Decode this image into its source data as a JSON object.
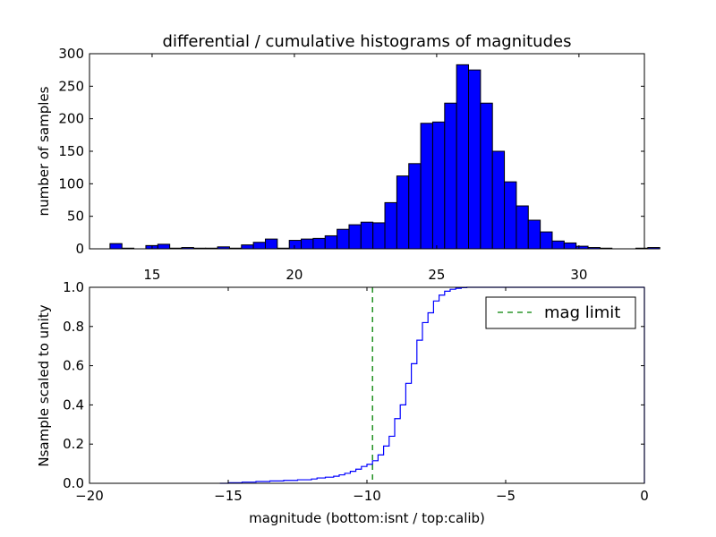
{
  "chart_data": [
    {
      "type": "bar",
      "title": "differential / cumulative histograms of magnitudes",
      "xlabel": "",
      "ylabel": "number of samples",
      "xlim": [
        12.8,
        32.3
      ],
      "ylim": [
        0,
        300
      ],
      "xticks": [
        15,
        20,
        25,
        30
      ],
      "yticks": [
        0,
        50,
        100,
        150,
        200,
        250,
        300
      ],
      "bin_width": 0.42,
      "bin_start": 13.1,
      "bar_color": "#0000ff",
      "values": [
        0,
        8,
        1,
        0,
        5,
        7,
        1,
        2,
        1,
        1,
        3,
        1,
        6,
        10,
        15,
        1,
        13,
        15,
        16,
        20,
        30,
        37,
        41,
        40,
        71,
        112,
        131,
        193,
        195,
        224,
        283,
        275,
        224,
        150,
        103,
        66,
        44,
        26,
        12,
        9,
        4,
        2,
        1,
        0,
        0,
        1,
        2
      ]
    },
    {
      "type": "line",
      "step": true,
      "title": "",
      "xlabel": "magnitude (bottom:isnt / top:calib)",
      "ylabel": "Nsample scaled to unity",
      "xlim": [
        -20,
        0
      ],
      "ylim": [
        0.0,
        1.0
      ],
      "xticks": [
        -20,
        -15,
        -10,
        -5,
        0
      ],
      "yticks": [
        0.0,
        0.2,
        0.4,
        0.6,
        0.8,
        1.0
      ],
      "legend": {
        "placement": "top-right",
        "entries": [
          "mag limit"
        ]
      },
      "series": [
        {
          "color": "#0000ff",
          "x": [
            -15.3,
            -15.0,
            -14.5,
            -14.0,
            -13.5,
            -13.0,
            -12.5,
            -12.0,
            -11.8,
            -11.5,
            -11.2,
            -11.0,
            -10.8,
            -10.6,
            -10.4,
            -10.2,
            -10.0,
            -9.8,
            -9.6,
            -9.4,
            -9.2,
            -9.0,
            -8.8,
            -8.6,
            -8.4,
            -8.2,
            -8.0,
            -7.8,
            -7.6,
            -7.4,
            -7.2,
            -7.0,
            -6.8,
            -6.6,
            -6.4,
            -6.2,
            -6.0,
            -5.8,
            0
          ],
          "y": [
            0.0,
            0.003,
            0.006,
            0.009,
            0.012,
            0.015,
            0.018,
            0.022,
            0.027,
            0.031,
            0.036,
            0.043,
            0.051,
            0.061,
            0.072,
            0.086,
            0.097,
            0.115,
            0.145,
            0.19,
            0.24,
            0.33,
            0.4,
            0.51,
            0.61,
            0.73,
            0.82,
            0.87,
            0.93,
            0.96,
            0.98,
            0.99,
            0.995,
            0.998,
            1.0,
            1.0,
            1.0,
            1.0,
            1.0
          ]
        },
        {
          "name": "mag limit",
          "color": "#008000",
          "style": "dashed",
          "vline_x": -9.8
        }
      ]
    }
  ]
}
